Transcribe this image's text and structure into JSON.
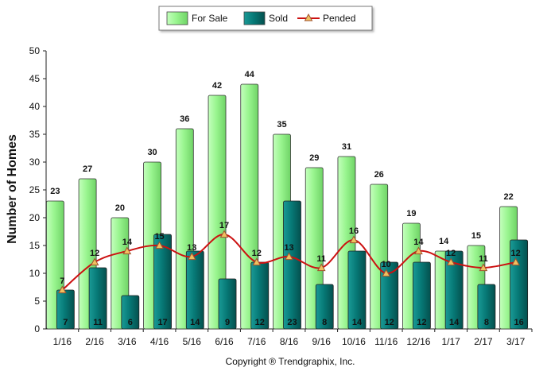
{
  "chart_data": {
    "type": "bar",
    "title": "",
    "xlabel": "",
    "ylabel": "Number of Homes",
    "ylim": [
      0,
      50
    ],
    "yticks": [
      0,
      5,
      10,
      15,
      20,
      25,
      30,
      35,
      40,
      45,
      50
    ],
    "grid": false,
    "legend_position": "top-center",
    "categories": [
      "1/16",
      "2/16",
      "3/16",
      "4/16",
      "5/16",
      "6/16",
      "7/16",
      "8/16",
      "9/16",
      "10/16",
      "11/16",
      "12/16",
      "1/17",
      "2/17",
      "3/17"
    ],
    "series": [
      {
        "name": "For Sale",
        "type": "bar",
        "color": "#99f58f",
        "values": [
          23,
          27,
          20,
          30,
          36,
          42,
          44,
          35,
          29,
          31,
          26,
          19,
          14,
          15,
          22
        ]
      },
      {
        "name": "Sold",
        "type": "bar",
        "color": "#077a77",
        "values": [
          7,
          11,
          6,
          17,
          14,
          9,
          12,
          23,
          8,
          14,
          12,
          12,
          14,
          8,
          16
        ]
      },
      {
        "name": "Pended",
        "type": "line",
        "color": "#cc1111",
        "marker": "triangle",
        "values": [
          7,
          12,
          14,
          15,
          13,
          17,
          12,
          13,
          11,
          16,
          10,
          14,
          12,
          11,
          12
        ]
      }
    ],
    "footer": "Copyright ® Trendgraphix, Inc."
  }
}
